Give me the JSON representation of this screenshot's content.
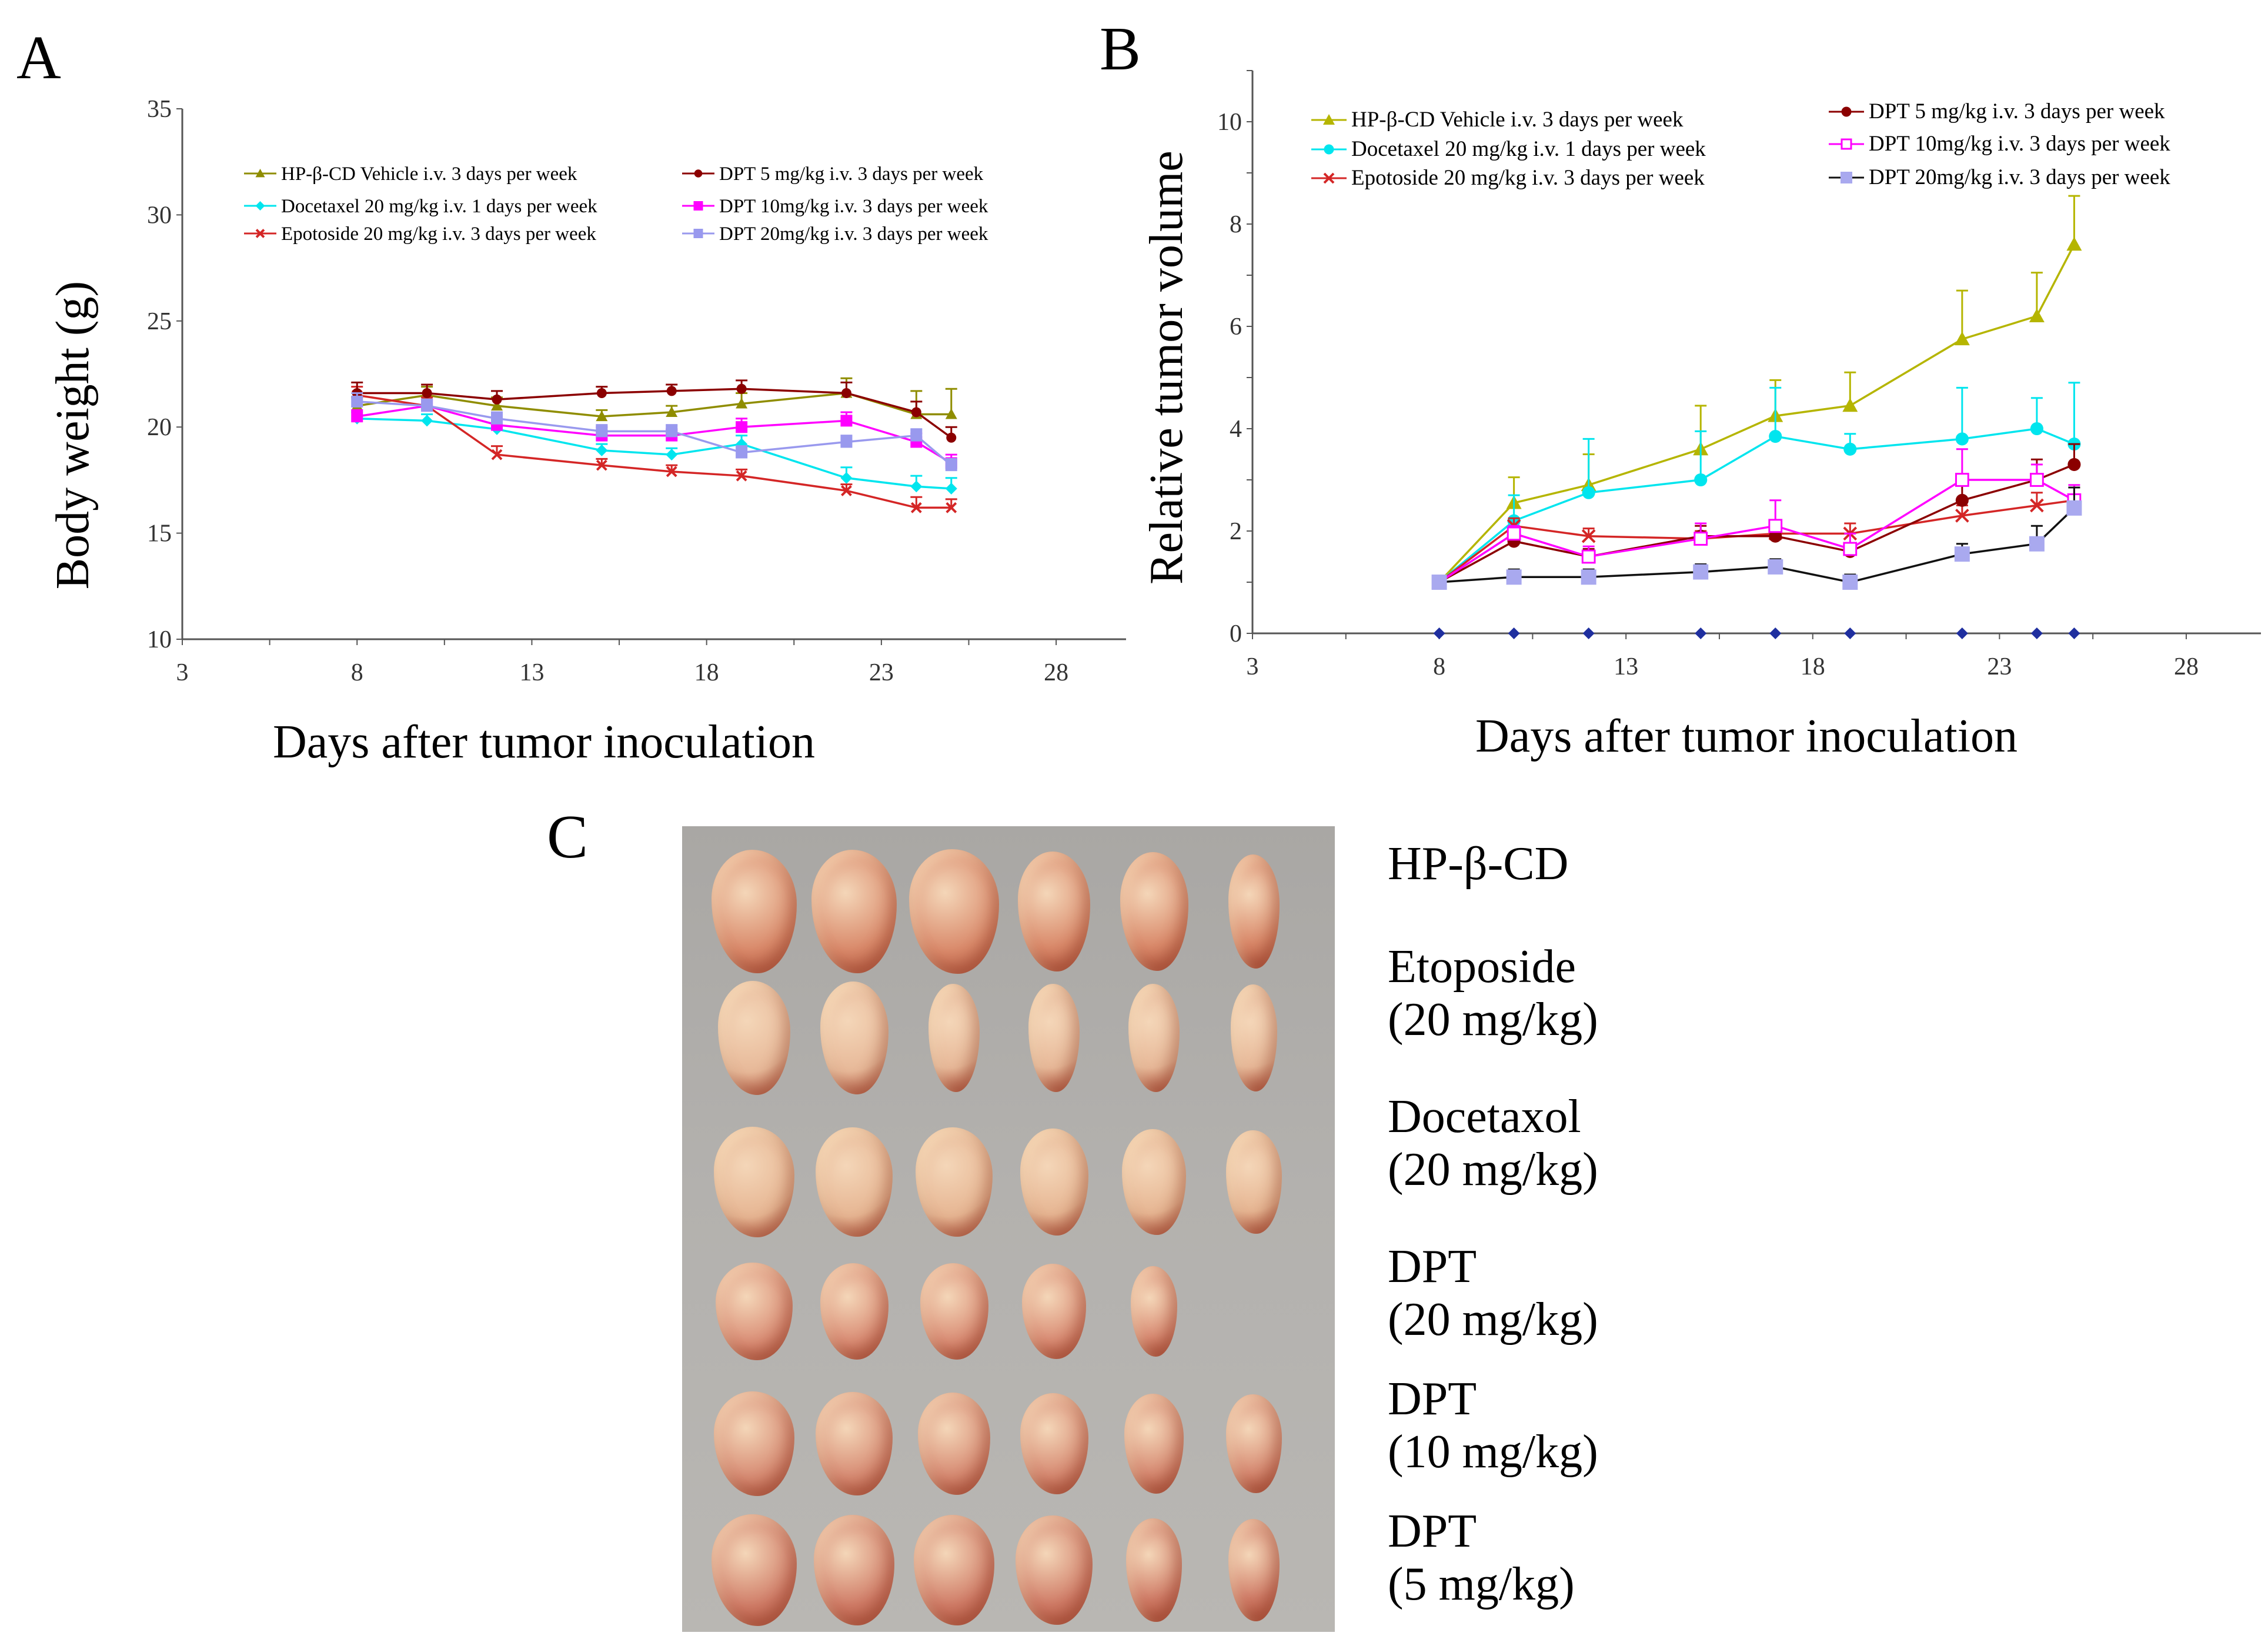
{
  "panels": {
    "a_label": "A",
    "b_label": "B",
    "c_label": "C"
  },
  "chart_data": [
    {
      "type": "line",
      "panel": "A",
      "title": "",
      "xlabel": "Days after tumor inoculation",
      "ylabel": "Body weight (g)",
      "xlim": [
        3,
        30
      ],
      "ylim": [
        10,
        35
      ],
      "xticks": [
        3,
        8,
        13,
        18,
        23,
        28
      ],
      "yticks": [
        10,
        15,
        20,
        25,
        30,
        35
      ],
      "x": [
        8,
        10,
        12,
        15,
        17,
        19,
        22,
        24,
        25
      ],
      "legend_position": "top",
      "series": [
        {
          "name": "HP-β-CD Vehicle i.v. 3 days per week",
          "color": "#8f8d00",
          "marker": "triangle",
          "values": [
            21.0,
            21.5,
            21.0,
            20.5,
            20.7,
            21.1,
            21.6,
            20.6,
            20.6
          ],
          "errors": [
            0.4,
            0.4,
            0.4,
            0.3,
            0.3,
            0.5,
            0.7,
            1.1,
            1.2
          ]
        },
        {
          "name": "Docetaxel 20 mg/kg i.v. 1 days per week",
          "color": "#00e5ee",
          "marker": "diamond",
          "values": [
            20.4,
            20.3,
            19.9,
            18.9,
            18.7,
            19.2,
            17.6,
            17.2,
            17.1
          ],
          "errors": [
            0.3,
            0.3,
            0.3,
            0.3,
            0.3,
            0.4,
            0.5,
            0.5,
            0.5
          ]
        },
        {
          "name": "Epotoside 20 mg/kg i.v. 3 days per week",
          "color": "#d42626",
          "marker": "cross",
          "values": [
            21.5,
            21.0,
            18.7,
            18.2,
            17.9,
            17.7,
            17.0,
            16.2,
            16.2
          ],
          "errors": [
            0.4,
            0.4,
            0.4,
            0.3,
            0.3,
            0.3,
            0.3,
            0.5,
            0.4
          ]
        },
        {
          "name": "DPT 5 mg/kg i.v. 3 days per week",
          "color": "#8b0000",
          "marker": "circle",
          "values": [
            21.6,
            21.6,
            21.3,
            21.6,
            21.7,
            21.8,
            21.6,
            20.7,
            19.5
          ],
          "errors": [
            0.5,
            0.4,
            0.4,
            0.3,
            0.3,
            0.4,
            0.5,
            0.5,
            0.5
          ]
        },
        {
          "name": "DPT 10mg/kg i.v. 3 days per week",
          "color": "#ff00ff",
          "marker": "square",
          "values": [
            20.5,
            21.0,
            20.1,
            19.6,
            19.6,
            20.0,
            20.3,
            19.3,
            18.3
          ],
          "errors": [
            0.3,
            0.3,
            0.4,
            0.4,
            0.3,
            0.4,
            0.4,
            0.4,
            0.4
          ]
        },
        {
          "name": "DPT 20mg/kg i.v. 3 days per week",
          "color": "#9999ee",
          "marker": "square",
          "values": [
            21.2,
            21.0,
            20.4,
            19.8,
            19.8,
            18.8,
            19.3,
            19.6,
            18.2
          ],
          "errors": [
            0.4,
            0.3,
            0.3,
            0.3,
            0.3,
            0.3,
            0.3,
            0.3,
            0.3
          ]
        }
      ]
    },
    {
      "type": "line",
      "panel": "B",
      "title": "",
      "xlabel": "Days after tumor inoculation",
      "ylabel": "Relative tumor volume",
      "xlim": [
        3,
        30
      ],
      "ylim": [
        0,
        11
      ],
      "xticks": [
        3,
        8,
        13,
        18,
        23,
        28
      ],
      "yticks": [
        0,
        2,
        4,
        6,
        8,
        10
      ],
      "x": [
        8,
        10,
        12,
        15,
        17,
        19,
        22,
        24,
        25
      ],
      "legend_position": "top",
      "baseline_series": {
        "color": "#1f2f9f",
        "marker": "diamond",
        "values": [
          0,
          0,
          0,
          0,
          0,
          0,
          0,
          0,
          0
        ]
      },
      "series": [
        {
          "name": "HP-β-CD Vehicle i.v. 3 days per week",
          "color": "#b5b500",
          "marker": "triangle",
          "values": [
            1.0,
            2.55,
            2.9,
            3.6,
            4.25,
            4.45,
            5.75,
            6.2,
            7.6
          ],
          "errors": [
            0.0,
            0.5,
            0.6,
            0.85,
            0.7,
            0.65,
            0.95,
            0.85,
            0.95
          ]
        },
        {
          "name": "Docetaxel 20 mg/kg i.v. 1 days per week",
          "color": "#00e5ee",
          "marker": "circle",
          "values": [
            1.0,
            2.2,
            2.75,
            3.0,
            3.85,
            3.6,
            3.8,
            4.0,
            3.7
          ],
          "errors": [
            0.0,
            0.5,
            1.05,
            0.95,
            0.95,
            0.3,
            1.0,
            0.6,
            1.2
          ]
        },
        {
          "name": "Epotoside 20 mg/kg i.v. 3 days per week",
          "color": "#d42626",
          "marker": "cross",
          "values": [
            1.0,
            2.1,
            1.9,
            1.85,
            1.95,
            1.95,
            2.3,
            2.5,
            2.6
          ],
          "errors": [
            0.0,
            0.15,
            0.15,
            0.15,
            0.15,
            0.2,
            0.2,
            0.25,
            0.25
          ]
        },
        {
          "name": "DPT 5 mg/kg i.v. 3 days per week",
          "color": "#8b0000",
          "marker": "circle",
          "values": [
            1.0,
            1.8,
            1.5,
            1.9,
            1.9,
            1.6,
            2.6,
            3.0,
            3.3
          ],
          "errors": [
            0.0,
            0.15,
            0.15,
            0.2,
            0.15,
            0.15,
            0.3,
            0.4,
            0.4
          ]
        },
        {
          "name": "DPT 10mg/kg i.v. 3 days per week",
          "color": "#ff00ff",
          "marker": "open-square",
          "values": [
            1.0,
            1.95,
            1.5,
            1.85,
            2.1,
            1.65,
            3.0,
            3.0,
            2.6
          ],
          "errors": [
            0.0,
            0.15,
            0.2,
            0.3,
            0.5,
            0.3,
            0.6,
            0.3,
            0.3
          ]
        },
        {
          "name": "DPT 20mg/kg i.v. 3 days per week",
          "color": "#111111",
          "marker": "square",
          "fill": "#a9a9ef",
          "values": [
            1.0,
            1.1,
            1.1,
            1.2,
            1.3,
            1.0,
            1.55,
            1.75,
            2.45
          ],
          "errors": [
            0.0,
            0.15,
            0.15,
            0.15,
            0.15,
            0.15,
            0.2,
            0.35,
            0.4
          ]
        }
      ]
    }
  ],
  "photo": {
    "labels": [
      "HP-β-CD",
      "Etoposide\n(20 mg/kg)",
      "Docetaxol\n(20 mg/kg)",
      "DPT\n(20 mg/kg)",
      "DPT\n(10 mg/kg)",
      "DPT\n(5 mg/kg)"
    ],
    "tumor_counts": [
      6,
      6,
      6,
      5,
      6,
      6
    ],
    "row_colors": [
      "#d9896a",
      "#e7b898",
      "#e6b592",
      "#d98c74",
      "#d68a72",
      "#cf7b66"
    ]
  }
}
